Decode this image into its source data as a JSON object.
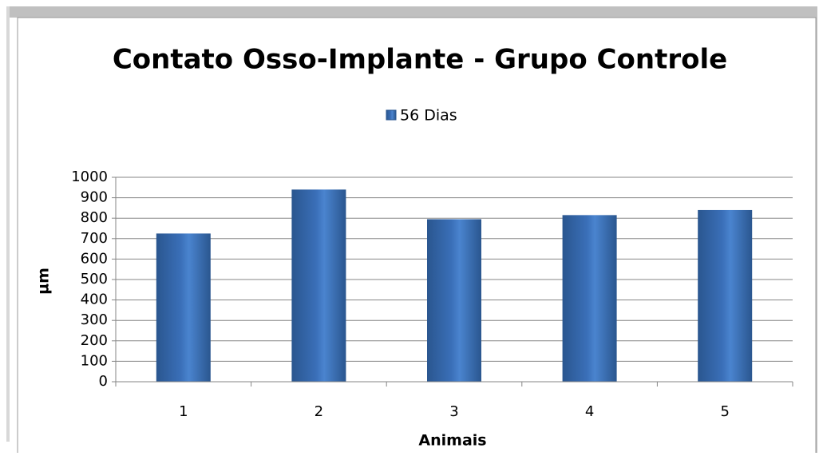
{
  "chart_data": {
    "type": "bar",
    "title": "Contato Osso-Implante - Grupo Controle",
    "categories": [
      "1",
      "2",
      "3",
      "4",
      "5"
    ],
    "series": [
      {
        "name": "56 Dias",
        "color": "#3a6fb8",
        "values": [
          725,
          940,
          795,
          815,
          840
        ]
      }
    ],
    "xlabel": "Animais",
    "ylabel": "µm",
    "ylim": [
      0,
      1000
    ],
    "yticks": [
      0,
      100,
      200,
      300,
      400,
      500,
      600,
      700,
      800,
      900,
      1000
    ],
    "grid": true,
    "legend": "top"
  }
}
